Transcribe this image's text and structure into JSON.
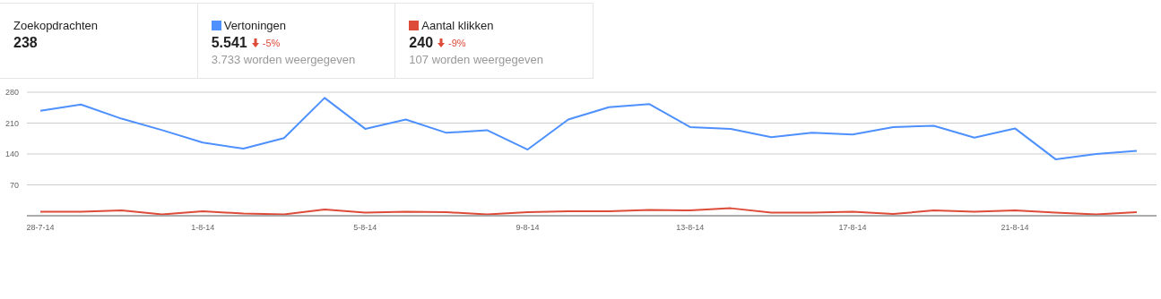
{
  "chart_data": {
    "type": "line",
    "categories": [
      "28-7-14",
      null,
      null,
      null,
      "1-8-14",
      null,
      null,
      null,
      "5-8-14",
      null,
      null,
      null,
      "9-8-14",
      null,
      null,
      null,
      "13-8-14",
      null,
      null,
      null,
      "17-8-14",
      null,
      null,
      null,
      "21-8-14",
      null,
      null,
      null
    ],
    "series": [
      {
        "name": "Vertoningen",
        "color": "#4d90fe",
        "values": [
          238,
          252,
          220,
          194,
          166,
          152,
          176,
          267,
          197,
          218,
          188,
          194,
          150,
          218,
          246,
          253,
          201,
          197,
          178,
          188,
          184,
          201,
          204,
          177,
          198,
          128,
          140,
          147
        ]
      },
      {
        "name": "Aantal klikken",
        "color": "#dd4b39",
        "values": [
          9,
          9,
          12,
          3,
          10,
          5,
          3,
          14,
          7,
          9,
          8,
          3,
          8,
          10,
          10,
          13,
          12,
          17,
          7,
          7,
          9,
          4,
          12,
          9,
          12,
          7,
          3,
          8
        ]
      }
    ],
    "annotations": [
      "Zoekopdrachten",
      "238",
      "5.541",
      "-5%",
      "3.733 worden weergegeven",
      "240",
      "-9%",
      "107 worden weergegeven"
    ],
    "ylim": [
      0,
      280
    ],
    "yticks": [
      {
        "value": 0,
        "label": null
      },
      70,
      140,
      210,
      280
    ],
    "grid": "y",
    "legend": "top left",
    "marker": "none",
    "line_style": "solid"
  }
}
